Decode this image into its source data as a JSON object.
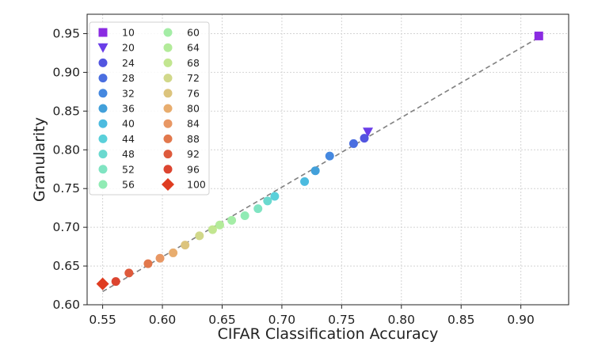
{
  "chart_data": {
    "type": "scatter",
    "title": "",
    "xlabel": "CIFAR Classification Accuracy",
    "ylabel": "Granularity",
    "xlim": [
      0.537,
      0.94
    ],
    "ylim": [
      0.6,
      0.975
    ],
    "xticks": [
      "0.55",
      "0.60",
      "0.65",
      "0.70",
      "0.75",
      "0.80",
      "0.85",
      "0.90"
    ],
    "yticks": [
      "0.60",
      "0.65",
      "0.70",
      "0.75",
      "0.80",
      "0.85",
      "0.90",
      "0.95"
    ],
    "grid": true,
    "legend_position": "top-left",
    "trend_line": {
      "style": "dashed",
      "color": "#808080",
      "from": [
        0.55,
        0.617
      ],
      "to": [
        0.915,
        0.945
      ]
    },
    "series": [
      {
        "name": "10",
        "marker": "square",
        "color": "#8a2be2",
        "x": 0.915,
        "y": 0.947
      },
      {
        "name": "20",
        "marker": "triangle-down",
        "color": "#6a3de8",
        "x": 0.772,
        "y": 0.823
      },
      {
        "name": "24",
        "marker": "circle",
        "color": "#5255e0",
        "x": 0.769,
        "y": 0.815
      },
      {
        "name": "28",
        "marker": "circle",
        "color": "#4a6ee0",
        "x": 0.76,
        "y": 0.808
      },
      {
        "name": "32",
        "marker": "circle",
        "color": "#4588e0",
        "x": 0.74,
        "y": 0.792
      },
      {
        "name": "36",
        "marker": "circle",
        "color": "#42a0da",
        "x": 0.728,
        "y": 0.773
      },
      {
        "name": "40",
        "marker": "circle",
        "color": "#4cbbdf",
        "x": 0.719,
        "y": 0.759
      },
      {
        "name": "44",
        "marker": "circle",
        "color": "#5ad0da",
        "x": 0.694,
        "y": 0.74
      },
      {
        "name": "48",
        "marker": "circle",
        "color": "#6ad9cf",
        "x": 0.688,
        "y": 0.734
      },
      {
        "name": "52",
        "marker": "circle",
        "color": "#80e4c2",
        "x": 0.68,
        "y": 0.724
      },
      {
        "name": "56",
        "marker": "circle",
        "color": "#90ebb4",
        "x": 0.669,
        "y": 0.715
      },
      {
        "name": "60",
        "marker": "circle",
        "color": "#a4eda6",
        "x": 0.658,
        "y": 0.709
      },
      {
        "name": "64",
        "marker": "circle",
        "color": "#b3eb9a",
        "x": 0.648,
        "y": 0.703
      },
      {
        "name": "68",
        "marker": "circle",
        "color": "#c2e690",
        "x": 0.642,
        "y": 0.697
      },
      {
        "name": "72",
        "marker": "circle",
        "color": "#d1d88a",
        "x": 0.631,
        "y": 0.689
      },
      {
        "name": "76",
        "marker": "circle",
        "color": "#dcc47d",
        "x": 0.619,
        "y": 0.677
      },
      {
        "name": "80",
        "marker": "circle",
        "color": "#e8ad6e",
        "x": 0.609,
        "y": 0.667
      },
      {
        "name": "84",
        "marker": "circle",
        "color": "#e89764",
        "x": 0.598,
        "y": 0.66
      },
      {
        "name": "88",
        "marker": "circle",
        "color": "#e2784c",
        "x": 0.588,
        "y": 0.653
      },
      {
        "name": "92",
        "marker": "circle",
        "color": "#de5a3c",
        "x": 0.572,
        "y": 0.641
      },
      {
        "name": "96",
        "marker": "circle",
        "color": "#dc4530",
        "x": 0.561,
        "y": 0.63
      },
      {
        "name": "100",
        "marker": "diamond",
        "color": "#df3c20",
        "x": 0.55,
        "y": 0.627
      }
    ]
  }
}
